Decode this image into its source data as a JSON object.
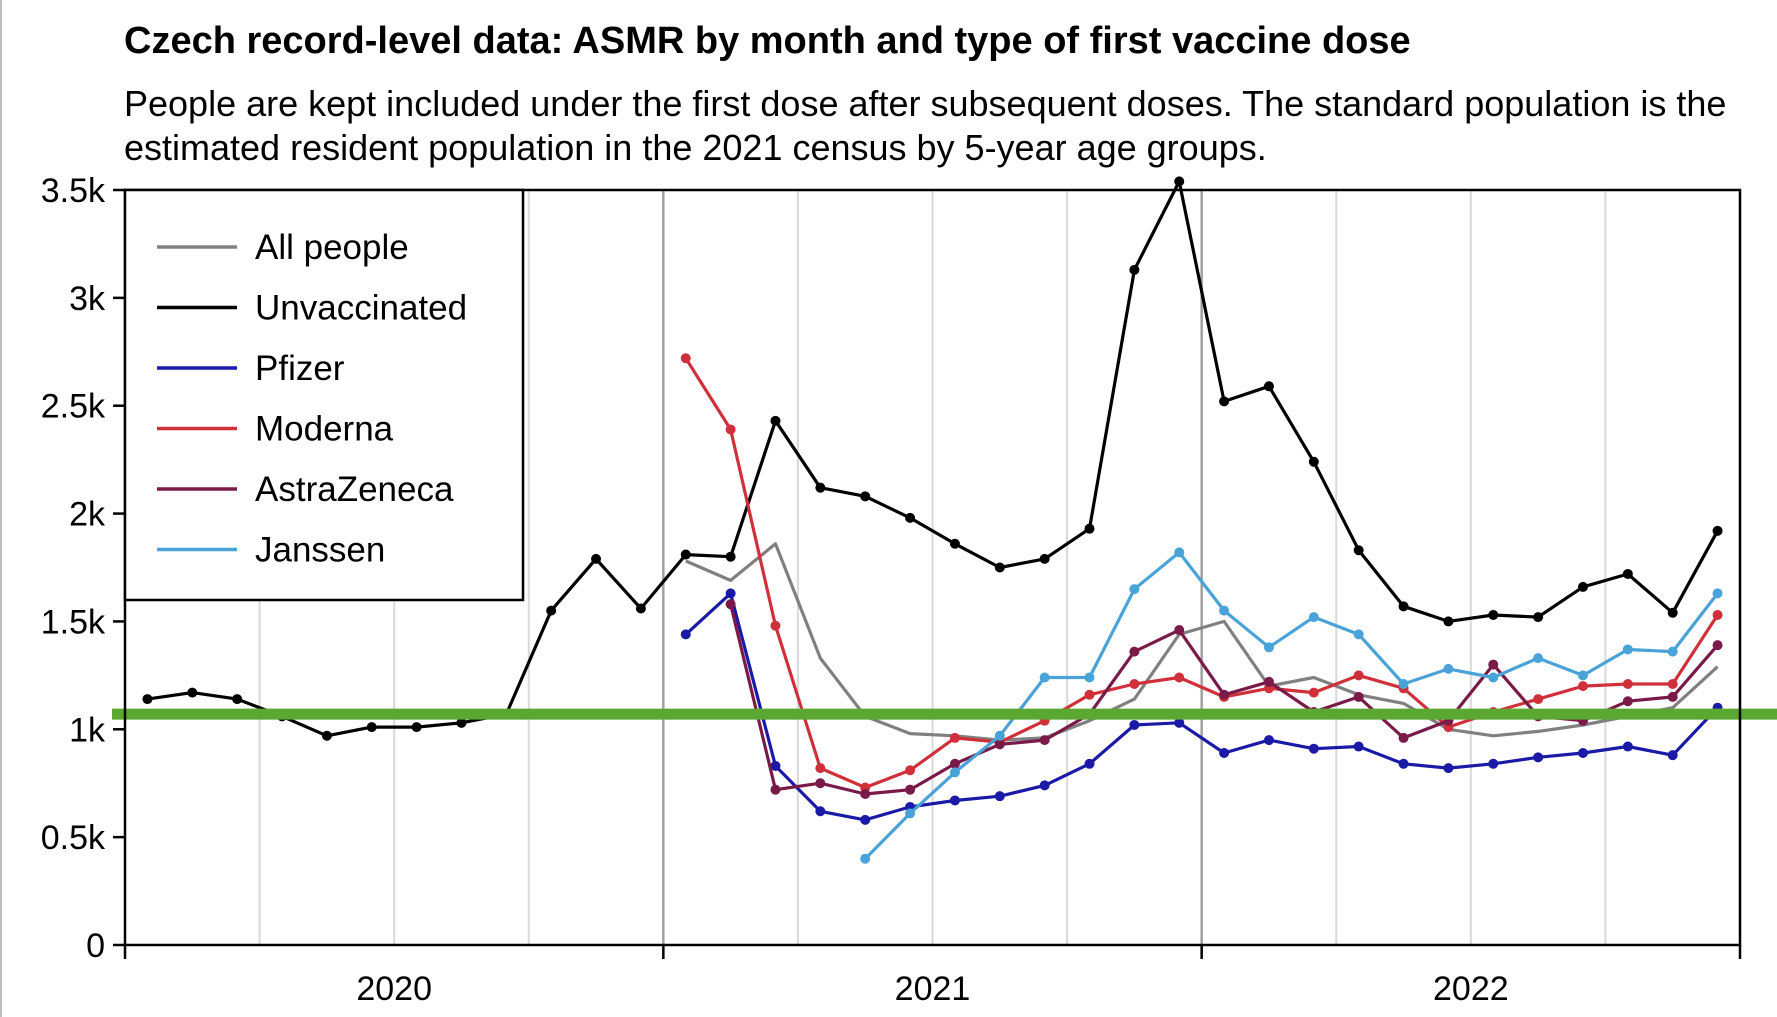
{
  "chart_data": {
    "type": "line",
    "title": "Czech record-level data: ASMR by month and type of first vaccine dose",
    "subtitle": "People are kept included under the first dose after subsequent doses. The standard population is the estimated resident population in the 2021 census by 5-year age groups.",
    "xlabel": "",
    "ylabel": "",
    "x_tick_labels": [
      "2020",
      "2021",
      "2022"
    ],
    "y_tick_labels": [
      "0",
      "0.5k",
      "1k",
      "1.5k",
      "2k",
      "2.5k",
      "3k",
      "3.5k"
    ],
    "y_ticks": [
      0,
      500,
      1000,
      1500,
      2000,
      2500,
      3000,
      3500
    ],
    "ylim": [
      0,
      3500
    ],
    "xlim": [
      "2020-01",
      "2022-12"
    ],
    "grid": true,
    "legend_position": "top-left",
    "reference_line": {
      "y": 1070,
      "color": "#5aa832"
    },
    "x": [
      "2020-01",
      "2020-02",
      "2020-03",
      "2020-04",
      "2020-05",
      "2020-06",
      "2020-07",
      "2020-08",
      "2020-09",
      "2020-10",
      "2020-11",
      "2020-12",
      "2021-01",
      "2021-02",
      "2021-03",
      "2021-04",
      "2021-05",
      "2021-06",
      "2021-07",
      "2021-08",
      "2021-09",
      "2021-10",
      "2021-11",
      "2021-12",
      "2022-01",
      "2022-02",
      "2022-03",
      "2022-04",
      "2022-05",
      "2022-06",
      "2022-07",
      "2022-08",
      "2022-09",
      "2022-10",
      "2022-11",
      "2022-12"
    ],
    "series": [
      {
        "name": "All people",
        "color": "#808080",
        "markers": false,
        "values": [
          null,
          null,
          null,
          null,
          null,
          null,
          null,
          null,
          null,
          null,
          null,
          null,
          1780,
          1690,
          1860,
          1330,
          1060,
          980,
          970,
          950,
          960,
          1040,
          1140,
          1440,
          1500,
          1200,
          1240,
          1160,
          1120,
          1000,
          970,
          990,
          1020,
          1060,
          1100,
          1290
        ]
      },
      {
        "name": "Unvaccinated",
        "color": "#000000",
        "markers": true,
        "values": [
          1140,
          1170,
          1140,
          1060,
          970,
          1010,
          1010,
          1030,
          1070,
          1550,
          1790,
          1560,
          1810,
          1800,
          2430,
          2120,
          2080,
          1980,
          1860,
          1750,
          1790,
          1930,
          3130,
          3540,
          2520,
          2590,
          2240,
          1830,
          1570,
          1500,
          1530,
          1520,
          1660,
          1720,
          1540,
          1920
        ]
      },
      {
        "name": "Pfizer",
        "color": "#1a1aa6",
        "markers": true,
        "values": [
          null,
          null,
          null,
          null,
          null,
          null,
          null,
          null,
          null,
          null,
          null,
          null,
          1440,
          1630,
          830,
          620,
          580,
          640,
          670,
          690,
          740,
          840,
          1020,
          1030,
          890,
          950,
          910,
          920,
          840,
          820,
          840,
          870,
          890,
          920,
          880,
          1100
        ]
      },
      {
        "name": "Moderna",
        "color": "#d0303a",
        "markers": true,
        "values": [
          null,
          null,
          null,
          null,
          null,
          null,
          null,
          null,
          null,
          null,
          null,
          null,
          2720,
          2390,
          1480,
          820,
          730,
          810,
          960,
          940,
          1040,
          1160,
          1210,
          1240,
          1150,
          1190,
          1170,
          1250,
          1190,
          1010,
          1080,
          1140,
          1200,
          1210,
          1210,
          1530
        ]
      },
      {
        "name": "AstraZeneca",
        "color": "#7a1a48",
        "markers": true,
        "values": [
          null,
          null,
          null,
          null,
          null,
          null,
          null,
          null,
          null,
          null,
          null,
          null,
          null,
          1580,
          720,
          750,
          700,
          720,
          840,
          930,
          950,
          1070,
          1360,
          1460,
          1160,
          1220,
          1080,
          1150,
          960,
          1040,
          1300,
          1060,
          1040,
          1130,
          1150,
          1390
        ]
      },
      {
        "name": "Janssen",
        "color": "#4aa3d8",
        "markers": true,
        "values": [
          null,
          null,
          null,
          null,
          null,
          null,
          null,
          null,
          null,
          null,
          null,
          null,
          null,
          null,
          null,
          null,
          400,
          610,
          800,
          970,
          1240,
          1240,
          1650,
          1820,
          1550,
          1380,
          1520,
          1440,
          1210,
          1280,
          1240,
          1330,
          1250,
          1370,
          1360,
          1630
        ]
      }
    ]
  }
}
